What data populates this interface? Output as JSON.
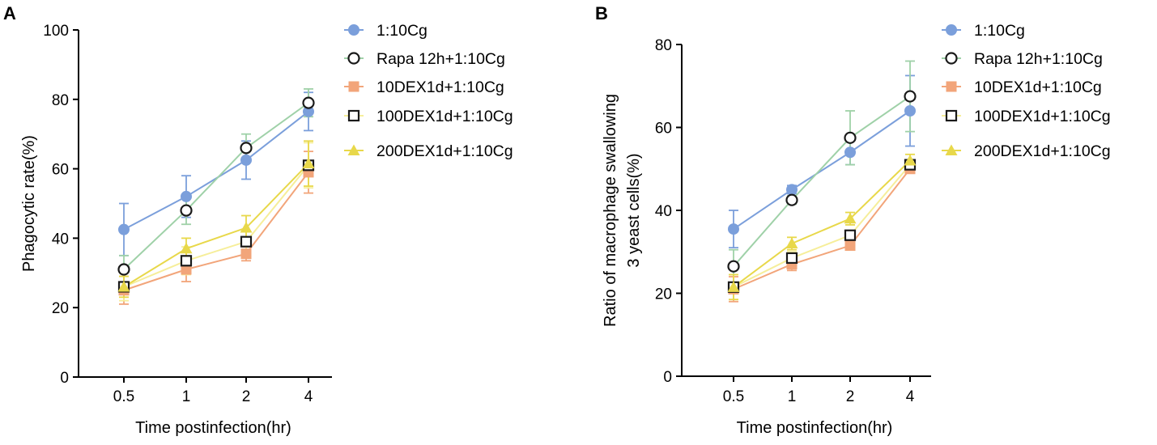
{
  "figure": {
    "panels": [
      "A",
      "B"
    ]
  },
  "series_styles": [
    {
      "name": "1:10Cg",
      "color": "#7B9FDB",
      "line": "#7B9FDB",
      "marker": "circle-filled"
    },
    {
      "name": "Rapa 12h+1:10Cg",
      "color": "#1A1A1A",
      "line": "#9FD1A8",
      "marker": "circle-open"
    },
    {
      "name": "10DEX1d+1:10Cg",
      "color": "#F2A57A",
      "line": "#F2A57A",
      "marker": "square-filled"
    },
    {
      "name": "100DEX1d+1:10Cg",
      "color": "#1A1A1A",
      "line": "#F6EE9A",
      "marker": "square-open"
    },
    {
      "name": "200DEX1d+1:10Cg",
      "color": "#E8D84A",
      "line": "#E8D84A",
      "marker": "triangle-filled"
    }
  ],
  "chart_data": [
    {
      "panel": "A",
      "type": "line",
      "title": "",
      "xlabel": "Time postinfection(hr)",
      "ylabel": "Phagocytic rate(%)",
      "categories": [
        "0.5",
        "1",
        "2",
        "4"
      ],
      "ylim": [
        0,
        100
      ],
      "yticks": [
        0,
        20,
        40,
        60,
        80,
        100
      ],
      "grid": false,
      "legend": "top-right",
      "series": [
        {
          "name": "1:10Cg",
          "values": [
            42.5,
            52,
            62.5,
            76.5
          ],
          "errors": [
            7.5,
            6,
            5.5,
            5.5
          ]
        },
        {
          "name": "Rapa 12h+1:10Cg",
          "values": [
            31,
            48,
            66,
            79
          ],
          "errors": [
            4,
            4,
            4,
            4
          ]
        },
        {
          "name": "10DEX1d+1:10Cg",
          "values": [
            25,
            31,
            35.5,
            59
          ],
          "errors": [
            4,
            3.5,
            2,
            6
          ]
        },
        {
          "name": "100DEX1d+1:10Cg",
          "values": [
            26,
            33.5,
            39,
            61
          ],
          "errors": [
            4,
            4,
            3,
            6.5
          ]
        },
        {
          "name": "200DEX1d+1:10Cg",
          "values": [
            26,
            37,
            43,
            61.5
          ],
          "errors": [
            3,
            3,
            3.5,
            6.5
          ]
        }
      ]
    },
    {
      "panel": "B",
      "type": "line",
      "title": "",
      "xlabel": "Time postinfection(hr)",
      "ylabel": "Ratio of macrophage swallowing",
      "ylabel2": "3 yeast cells(%)",
      "categories": [
        "0.5",
        "1",
        "2",
        "4"
      ],
      "ylim": [
        0,
        80
      ],
      "yticks": [
        0,
        20,
        40,
        60,
        80
      ],
      "grid": false,
      "legend": "top-right",
      "series": [
        {
          "name": "1:10Cg",
          "values": [
            35.5,
            45,
            54,
            64
          ],
          "errors": [
            4.5,
            1,
            3,
            8.5
          ]
        },
        {
          "name": "Rapa 12h+1:10Cg",
          "values": [
            26.5,
            42.5,
            57.5,
            67.5
          ],
          "errors": [
            4,
            1,
            6.5,
            8.5
          ]
        },
        {
          "name": "10DEX1d+1:10Cg",
          "values": [
            21,
            27,
            31.5,
            50
          ],
          "errors": [
            3,
            1.5,
            1,
            1
          ]
        },
        {
          "name": "100DEX1d+1:10Cg",
          "values": [
            21.5,
            28.5,
            34,
            51
          ],
          "errors": [
            3,
            1.5,
            1,
            1
          ]
        },
        {
          "name": "200DEX1d+1:10Cg",
          "values": [
            21.5,
            32,
            38,
            52
          ],
          "errors": [
            3,
            1.5,
            1.5,
            1.5
          ]
        }
      ]
    }
  ]
}
